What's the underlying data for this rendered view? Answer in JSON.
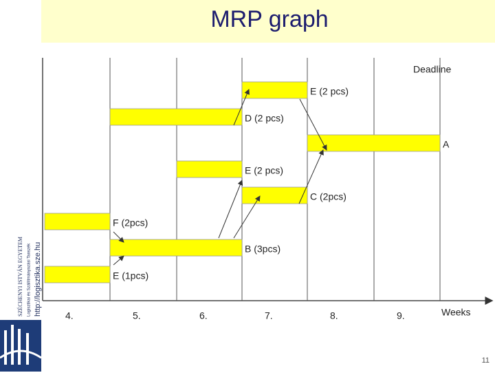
{
  "header": {
    "title": "MRP graph"
  },
  "sidebar": {
    "university": "SZÉCHENYI ISTVÁN EGYETEM",
    "department": "Logisztikai és Szállítmányozási Tanszék",
    "url": "http://logisztika.sze.hu"
  },
  "diagram": {
    "deadline": "Deadline",
    "axis_label": "Weeks",
    "weeks": [
      "4.",
      "5.",
      "6.",
      "7.",
      "8.",
      "9."
    ],
    "bars": [
      {
        "label": "E (1pcs)"
      },
      {
        "label": "F (2pcs)"
      },
      {
        "label": "B (3pcs)"
      },
      {
        "label": "E (2 pcs)"
      },
      {
        "label": "D (2 pcs)"
      },
      {
        "label": "C (2pcs)"
      },
      {
        "label": "E (2 pcs)"
      },
      {
        "label": "A"
      }
    ]
  },
  "footer": {
    "page_number": "11"
  }
}
